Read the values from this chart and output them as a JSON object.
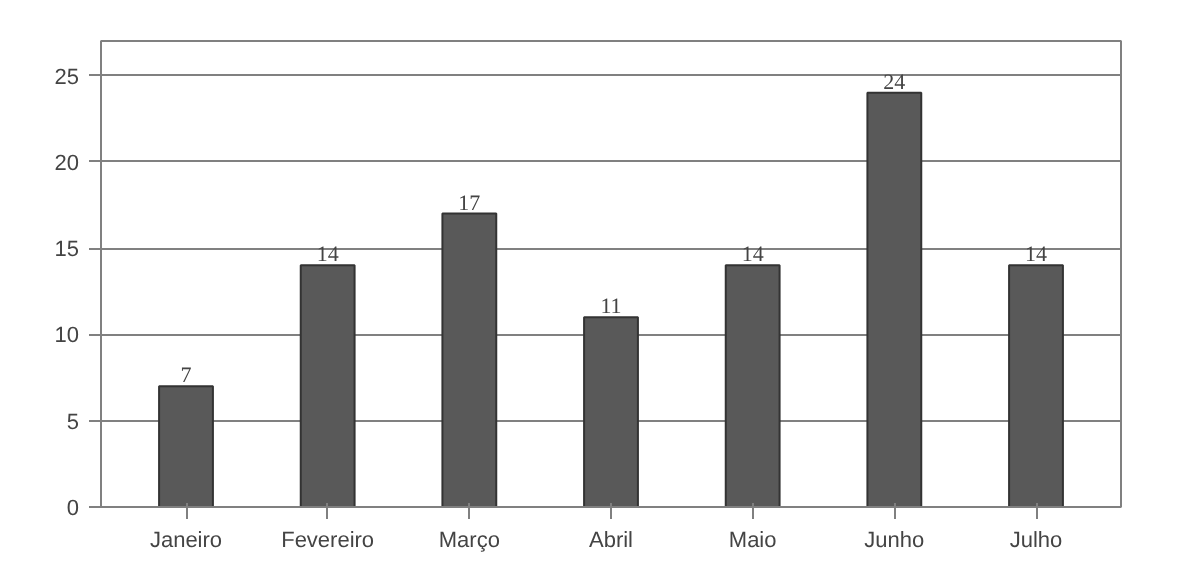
{
  "chart_data": {
    "type": "bar",
    "categories": [
      "Janeiro",
      "Fevereiro",
      "Março",
      "Abril",
      "Maio",
      "Junho",
      "Julho"
    ],
    "values": [
      7,
      14,
      17,
      11,
      14,
      24,
      14
    ],
    "color": "#595959",
    "ylim": [
      0,
      25
    ],
    "yticks": [
      0,
      5,
      10,
      15,
      20,
      25
    ],
    "grid": "y",
    "data_labels": true
  }
}
